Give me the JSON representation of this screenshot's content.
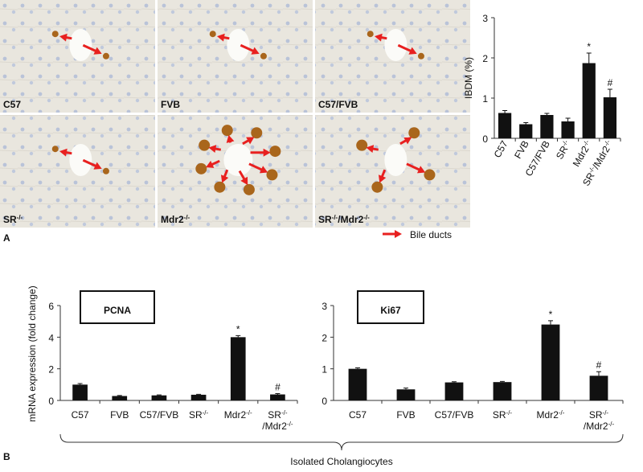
{
  "panel_labels": [
    "A",
    "B"
  ],
  "micrographs": [
    "C57",
    "FVB",
    "C57/FVB",
    "SR-/-",
    "Mdr2-/-",
    "SR-/-/Mdr2-/-"
  ],
  "legend": "Bile ducts",
  "shared_y_label": "mRNA expression (fold change)",
  "shared_x_label": "Isolated Cholangiocytes",
  "chart_data": [
    {
      "type": "bar",
      "y_label": "IBDM (%)",
      "categories": [
        "C57",
        "FVB",
        "C57/FVB",
        "SR-/-",
        "Mdr2-/-",
        "SR-/-/Mdr2-/-"
      ],
      "values": [
        0.63,
        0.35,
        0.58,
        0.42,
        1.87,
        1.02
      ],
      "errors": [
        0.06,
        0.04,
        0.04,
        0.08,
        0.25,
        0.2
      ],
      "significance": [
        null,
        null,
        null,
        null,
        "*",
        "#"
      ],
      "color": "#111111",
      "ylim": [
        0,
        3
      ],
      "yticks": [
        0,
        1,
        2,
        3
      ]
    },
    {
      "type": "bar",
      "title": "PCNA",
      "categories": [
        "C57",
        "FVB",
        "C57/FVB",
        "SR-/-",
        "Mdr2-/-",
        "SR-/-/Mdr2-/-"
      ],
      "values": [
        1.0,
        0.28,
        0.32,
        0.36,
        4.0,
        0.38
      ],
      "errors": [
        0.07,
        0.03,
        0.03,
        0.03,
        0.1,
        0.05
      ],
      "significance": [
        null,
        null,
        null,
        null,
        "*",
        "#"
      ],
      "color": "#111111",
      "ylim": [
        0,
        6
      ],
      "yticks": [
        0,
        2,
        4,
        6
      ]
    },
    {
      "type": "bar",
      "title": "Ki67",
      "categories": [
        "C57",
        "FVB",
        "C57/FVB",
        "SR-/-",
        "Mdr2-/-",
        "SR-/-/Mdr2-/-"
      ],
      "values": [
        1.0,
        0.35,
        0.57,
        0.58,
        2.4,
        0.78
      ],
      "errors": [
        0.03,
        0.04,
        0.02,
        0.02,
        0.12,
        0.13
      ],
      "significance": [
        null,
        null,
        null,
        null,
        "*",
        "#"
      ],
      "color": "#111111",
      "ylim": [
        0,
        3
      ],
      "yticks": [
        0,
        1,
        2,
        3
      ]
    }
  ]
}
